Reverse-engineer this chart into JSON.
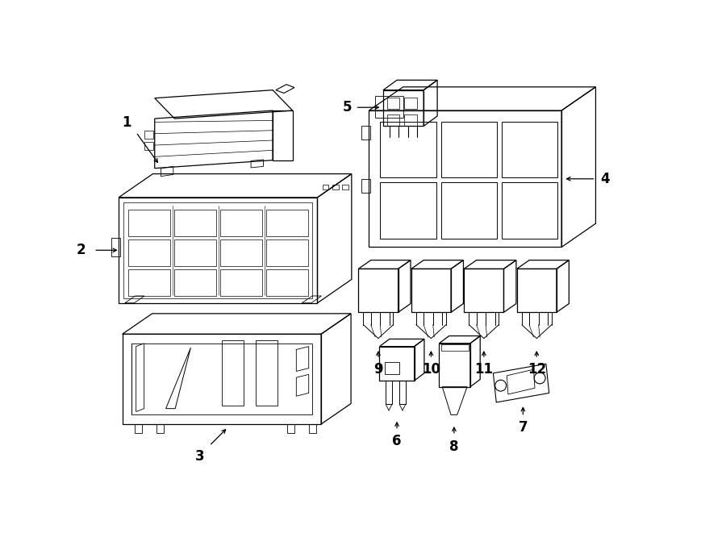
{
  "bg_color": "#ffffff",
  "line_color": "#000000",
  "lw": 0.9,
  "label_fontsize": 12,
  "figsize": [
    9.0,
    6.61
  ],
  "dpi": 100
}
